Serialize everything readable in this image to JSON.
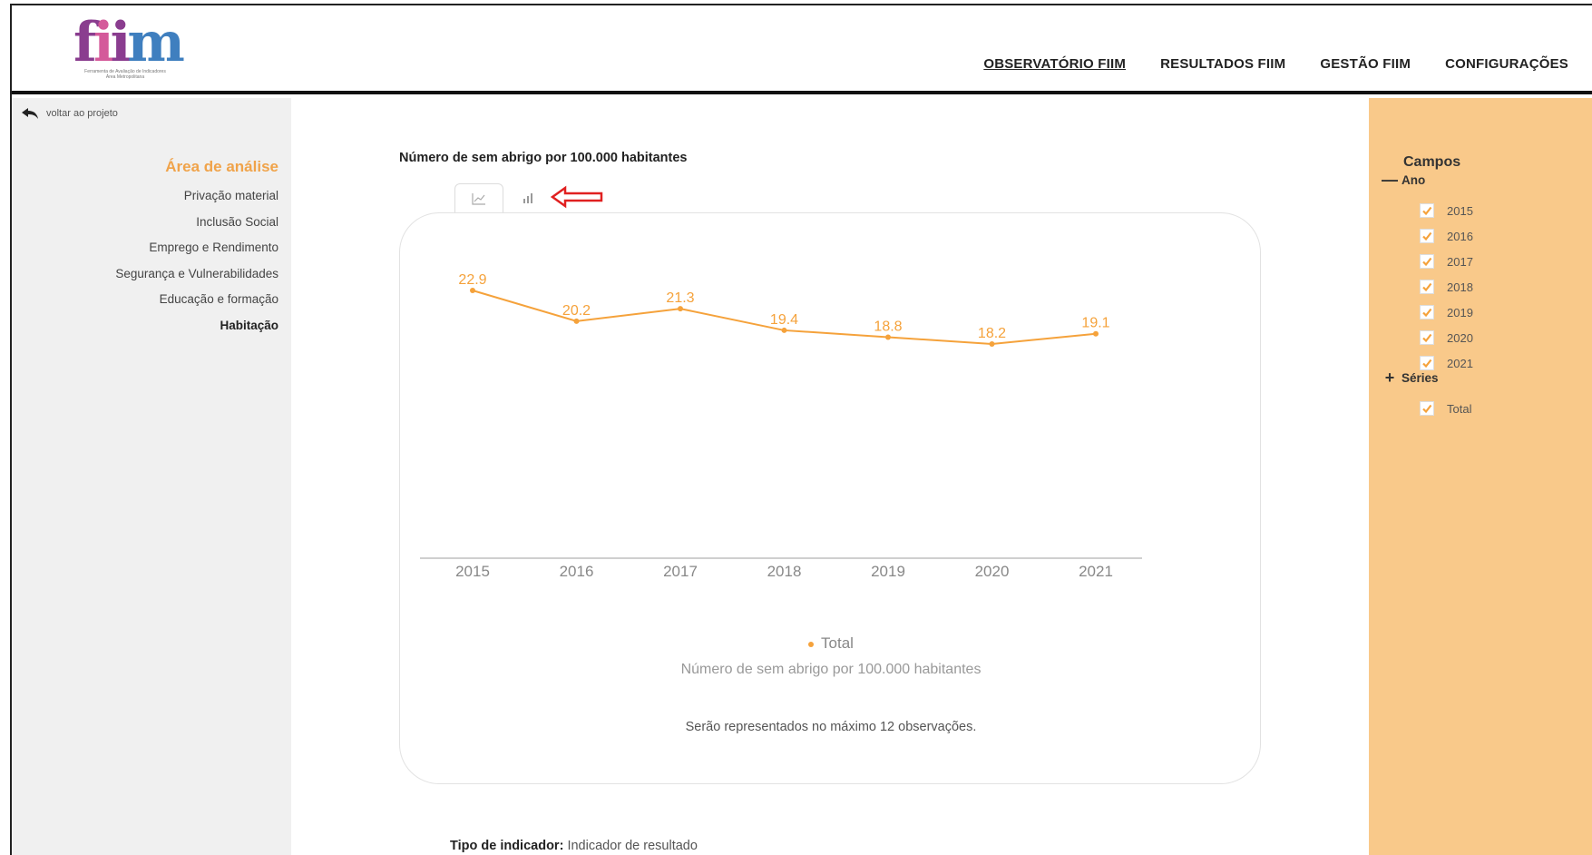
{
  "header": {
    "logo": {
      "text": "fiim",
      "subtitle": "Ferramenta de Avaliação de Indicadores Área Metropolitana"
    },
    "nav": [
      {
        "label": "OBSERVATÓRIO FIIM",
        "active": true
      },
      {
        "label": "RESULTADOS FIIM",
        "active": false
      },
      {
        "label": "GESTÃO FIIM",
        "active": false
      },
      {
        "label": "CONFIGURAÇÕES",
        "active": false
      }
    ]
  },
  "sidebar": {
    "back_label": "voltar ao projeto",
    "area_title": "Área de análise",
    "items": [
      {
        "label": "Privação material"
      },
      {
        "label": "Inclusão Social"
      },
      {
        "label": "Emprego e Rendimento"
      },
      {
        "label": "Segurança e Vulnerabilidades"
      },
      {
        "label": "Educação e formação"
      },
      {
        "label": "Habitação",
        "active": true
      }
    ]
  },
  "main": {
    "title": "Número de sem abrigo por 100.000 habitantes",
    "tabs": [
      {
        "icon": "line-chart-icon",
        "active": true
      },
      {
        "icon": "bar-chart-icon",
        "active": false
      }
    ],
    "legend_label": "Total",
    "caption": "Número de sem abrigo por 100.000 habitantes",
    "note": "Serão representados no máximo 12 observações.",
    "tipo_label": "Tipo de indicador:",
    "tipo_value": "Indicador de resultado"
  },
  "chart_data": {
    "type": "line",
    "x": [
      "2015",
      "2016",
      "2017",
      "2018",
      "2019",
      "2020",
      "2021"
    ],
    "series": [
      {
        "name": "Total",
        "values": [
          22.9,
          20.2,
          21.3,
          19.4,
          18.8,
          18.2,
          19.1
        ],
        "color": "#f5a23b"
      }
    ],
    "data_labels": [
      "22.9",
      "20.2",
      "21.3",
      "19.4",
      "18.8",
      "18.2",
      "19.1"
    ],
    "xlabel": "Número de sem abrigo por 100.000 habitantes",
    "legend": "bottom",
    "grid": false
  },
  "right_panel": {
    "title": "Campos",
    "groups": [
      {
        "label": "Ano",
        "symbol": "—",
        "items": [
          "2015",
          "2016",
          "2017",
          "2018",
          "2019",
          "2020",
          "2021"
        ]
      },
      {
        "label": "Séries",
        "symbol": "+",
        "items": [
          "Total"
        ]
      }
    ]
  },
  "colors": {
    "accent": "#f5a23b",
    "panel": "#f9c98a",
    "sidebar": "#f0f0f0",
    "area_title": "#f0a34a"
  }
}
